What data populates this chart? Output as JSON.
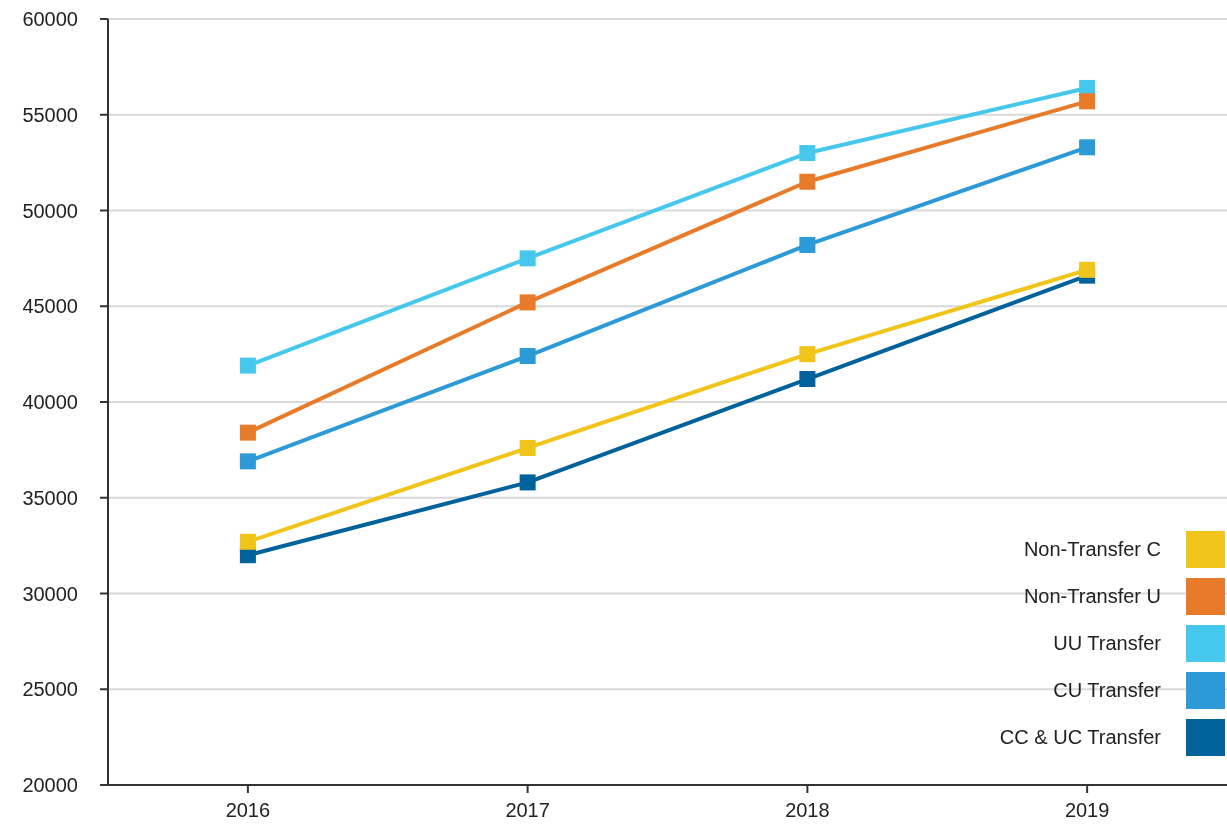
{
  "chart_data": {
    "type": "line",
    "categories": [
      "2016",
      "2017",
      "2018",
      "2019"
    ],
    "series": [
      {
        "name": "Non-Transfer C",
        "color": "#f0c419",
        "values": [
          32700,
          37600,
          42500,
          46900
        ]
      },
      {
        "name": "Non-Transfer U",
        "color": "#e87b2a",
        "values": [
          38400,
          45200,
          51500,
          55700
        ]
      },
      {
        "name": "UU Transfer",
        "color": "#45c8ec",
        "values": [
          41900,
          47500,
          53000,
          56400
        ]
      },
      {
        "name": "CU Transfer",
        "color": "#2c9ad6",
        "values": [
          36900,
          42400,
          48200,
          53300
        ]
      },
      {
        "name": "CC & UC Transfer",
        "color": "#00629b",
        "values": [
          32000,
          35800,
          41200,
          46600
        ]
      }
    ],
    "ylim": [
      20000,
      60000
    ],
    "yticks": [
      20000,
      25000,
      30000,
      35000,
      40000,
      45000,
      50000,
      55000,
      60000
    ],
    "grid": "y",
    "legend": "bottom right",
    "marker": "square",
    "line_style": "solid"
  }
}
